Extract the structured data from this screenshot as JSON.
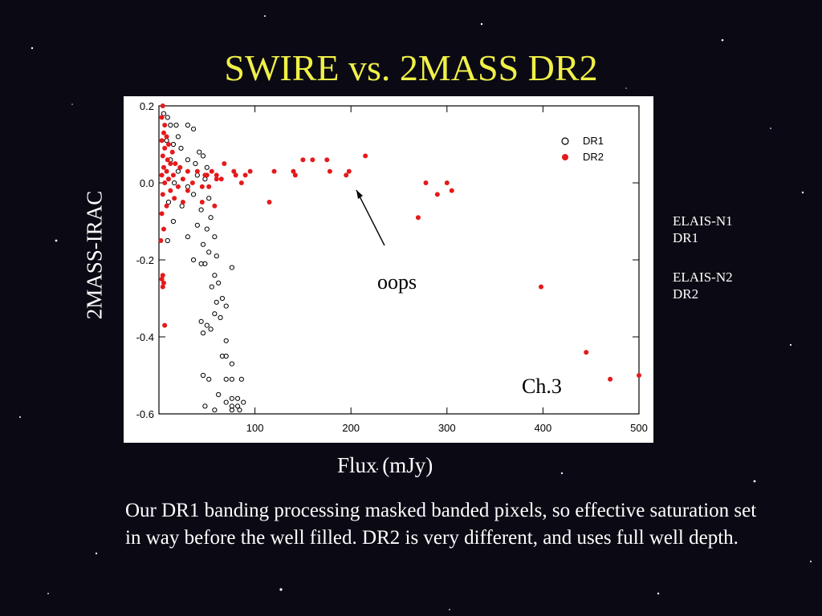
{
  "slide": {
    "title": "SWIRE vs. 2MASS DR2",
    "ylabel": "2MASS-IRAC",
    "xlabel": "Flux (mJy)",
    "caption": "Our DR1 banding processing masked banded pixels, so effective saturation set in way before the well filled. DR2 is very different, and uses full well depth.",
    "notes": [
      {
        "line1": "ELAIS-N1",
        "line2": "DR1"
      },
      {
        "line1": "ELAIS-N2",
        "line2": "DR2"
      }
    ],
    "annotation_oops": "oops",
    "annotation_channel": "Ch.3",
    "colors": {
      "background": "#0b0a14",
      "title": "#f0f048",
      "dr2": "#e41a1c",
      "dr1": "#000000"
    }
  },
  "chart_data": {
    "type": "scatter",
    "title": "",
    "xlabel": "",
    "ylabel": "",
    "xlim": [
      0,
      500
    ],
    "ylim": [
      -0.6,
      0.2
    ],
    "x_ticks": [
      100,
      200,
      300,
      400,
      500
    ],
    "y_ticks": [
      "0.2",
      "0.0",
      "-0.2",
      "-0.4",
      "-0.6"
    ],
    "y_tick_values": [
      0.2,
      0.0,
      -0.2,
      -0.4,
      -0.6
    ],
    "legend_position": "top-right",
    "series": [
      {
        "name": "DR1",
        "marker": "open-circle",
        "color": "#000000",
        "points": [
          [
            5,
            0.18
          ],
          [
            9,
            0.17
          ],
          [
            12,
            0.15
          ],
          [
            18,
            0.15
          ],
          [
            30,
            0.15
          ],
          [
            36,
            0.14
          ],
          [
            20,
            0.12
          ],
          [
            8,
            0.11
          ],
          [
            15,
            0.1
          ],
          [
            23,
            0.09
          ],
          [
            42,
            0.08
          ],
          [
            46,
            0.07
          ],
          [
            12,
            0.06
          ],
          [
            30,
            0.06
          ],
          [
            38,
            0.05
          ],
          [
            50,
            0.04
          ],
          [
            20,
            0.03
          ],
          [
            40,
            0.02
          ],
          [
            48,
            0.01
          ],
          [
            16,
            0.0
          ],
          [
            30,
            -0.01
          ],
          [
            36,
            -0.03
          ],
          [
            52,
            -0.04
          ],
          [
            10,
            -0.05
          ],
          [
            24,
            -0.06
          ],
          [
            44,
            -0.07
          ],
          [
            54,
            -0.09
          ],
          [
            15,
            -0.1
          ],
          [
            40,
            -0.11
          ],
          [
            50,
            -0.12
          ],
          [
            30,
            -0.14
          ],
          [
            58,
            -0.14
          ],
          [
            9,
            -0.15
          ],
          [
            46,
            -0.16
          ],
          [
            52,
            -0.18
          ],
          [
            60,
            -0.19
          ],
          [
            36,
            -0.2
          ],
          [
            44,
            -0.21
          ],
          [
            48,
            -0.21
          ],
          [
            76,
            -0.22
          ],
          [
            58,
            -0.24
          ],
          [
            62,
            -0.26
          ],
          [
            55,
            -0.27
          ],
          [
            66,
            -0.3
          ],
          [
            60,
            -0.31
          ],
          [
            70,
            -0.32
          ],
          [
            58,
            -0.34
          ],
          [
            64,
            -0.35
          ],
          [
            44,
            -0.36
          ],
          [
            50,
            -0.37
          ],
          [
            54,
            -0.38
          ],
          [
            46,
            -0.39
          ],
          [
            70,
            -0.41
          ],
          [
            66,
            -0.45
          ],
          [
            70,
            -0.45
          ],
          [
            76,
            -0.47
          ],
          [
            46,
            -0.5
          ],
          [
            52,
            -0.51
          ],
          [
            70,
            -0.51
          ],
          [
            76,
            -0.51
          ],
          [
            86,
            -0.51
          ],
          [
            62,
            -0.55
          ],
          [
            76,
            -0.56
          ],
          [
            82,
            -0.56
          ],
          [
            70,
            -0.57
          ],
          [
            88,
            -0.57
          ],
          [
            48,
            -0.58
          ],
          [
            76,
            -0.58
          ],
          [
            82,
            -0.58
          ],
          [
            58,
            -0.59
          ],
          [
            76,
            -0.59
          ],
          [
            84,
            -0.59
          ]
        ]
      },
      {
        "name": "DR2",
        "marker": "filled-circle",
        "color": "#e41a1c",
        "points": [
          [
            4,
            0.2
          ],
          [
            3,
            0.17
          ],
          [
            6,
            0.15
          ],
          [
            5,
            0.13
          ],
          [
            8,
            0.12
          ],
          [
            3,
            0.11
          ],
          [
            10,
            0.1
          ],
          [
            6,
            0.09
          ],
          [
            14,
            0.08
          ],
          [
            4,
            0.07
          ],
          [
            9,
            0.06
          ],
          [
            17,
            0.05
          ],
          [
            12,
            0.05
          ],
          [
            22,
            0.04
          ],
          [
            5,
            0.04
          ],
          [
            30,
            0.03
          ],
          [
            8,
            0.03
          ],
          [
            40,
            0.03
          ],
          [
            15,
            0.02
          ],
          [
            50,
            0.02
          ],
          [
            3,
            0.02
          ],
          [
            25,
            0.01
          ],
          [
            60,
            0.01
          ],
          [
            10,
            0.01
          ],
          [
            35,
            0.0
          ],
          [
            6,
            0.0
          ],
          [
            20,
            -0.01
          ],
          [
            45,
            -0.01
          ],
          [
            12,
            -0.02
          ],
          [
            30,
            -0.02
          ],
          [
            4,
            -0.03
          ],
          [
            16,
            -0.04
          ],
          [
            25,
            -0.05
          ],
          [
            8,
            -0.06
          ],
          [
            3,
            -0.08
          ],
          [
            5,
            -0.12
          ],
          [
            2,
            -0.15
          ],
          [
            4,
            -0.24
          ],
          [
            3,
            -0.25
          ],
          [
            5,
            -0.26
          ],
          [
            4,
            -0.27
          ],
          [
            6,
            -0.37
          ],
          [
            48,
            0.02
          ],
          [
            55,
            0.03
          ],
          [
            60,
            0.02
          ],
          [
            65,
            0.01
          ],
          [
            52,
            -0.01
          ],
          [
            45,
            -0.05
          ],
          [
            58,
            -0.06
          ],
          [
            68,
            0.05
          ],
          [
            78,
            0.03
          ],
          [
            80,
            0.02
          ],
          [
            86,
            0.0
          ],
          [
            90,
            0.02
          ],
          [
            95,
            0.03
          ],
          [
            120,
            0.03
          ],
          [
            115,
            -0.05
          ],
          [
            140,
            0.03
          ],
          [
            142,
            0.02
          ],
          [
            150,
            0.06
          ],
          [
            160,
            0.06
          ],
          [
            175,
            0.06
          ],
          [
            178,
            0.03
          ],
          [
            195,
            0.02
          ],
          [
            198,
            0.03
          ],
          [
            215,
            0.07
          ],
          [
            270,
            -0.09
          ],
          [
            278,
            0.0
          ],
          [
            290,
            -0.03
          ],
          [
            300,
            0.0
          ],
          [
            305,
            -0.02
          ],
          [
            398,
            -0.27
          ],
          [
            445,
            -0.44
          ],
          [
            470,
            -0.51
          ],
          [
            500,
            -0.5
          ]
        ]
      }
    ],
    "annotations": [
      {
        "text": "oops",
        "x_data": 200,
        "y_data": -0.25,
        "arrow_to": [
          200,
          0.0
        ]
      },
      {
        "text": "Ch.3",
        "x_data": 410,
        "y_data": -0.52
      }
    ]
  }
}
